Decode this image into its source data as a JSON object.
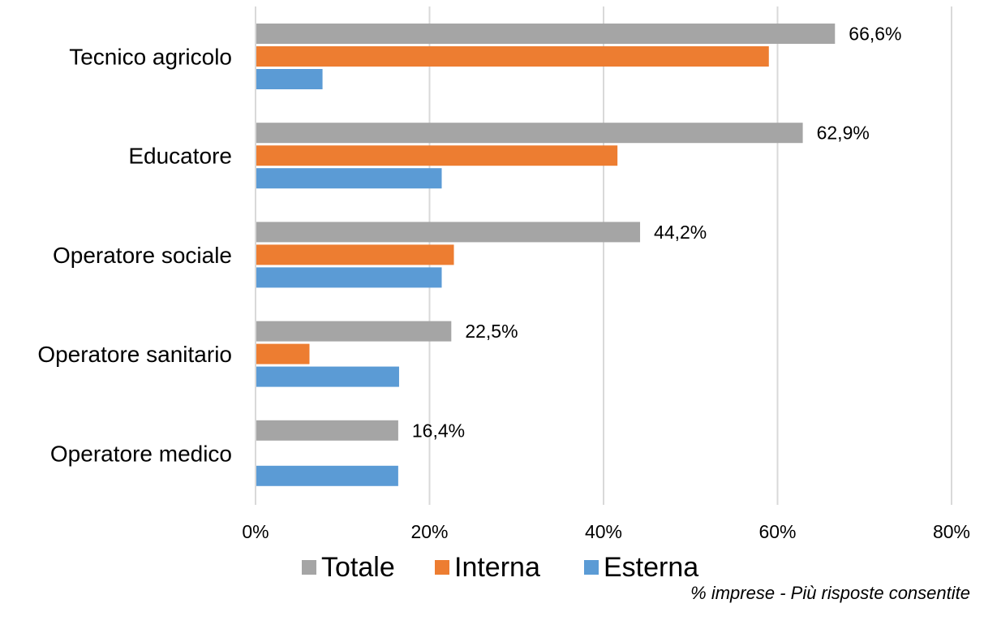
{
  "chart_data": {
    "type": "bar",
    "orientation": "horizontal",
    "categories": [
      "Tecnico agricolo",
      "Educatore",
      "Operatore sociale",
      "Operatore sanitario",
      "Operatore medico"
    ],
    "series": [
      {
        "name": "Totale",
        "color": "#a5a5a5",
        "values": [
          66.6,
          62.9,
          44.2,
          22.5,
          16.4
        ],
        "labels": [
          "66,6%",
          "62,9%",
          "44,2%",
          "22,5%",
          "16,4%"
        ]
      },
      {
        "name": "Interna",
        "color": "#ed7d31",
        "values": [
          59.0,
          41.6,
          22.8,
          6.2,
          0
        ]
      },
      {
        "name": "Esterna",
        "color": "#5b9bd5",
        "values": [
          7.7,
          21.4,
          21.4,
          16.5,
          16.4
        ]
      }
    ],
    "x_ticks": [
      0,
      20,
      40,
      60,
      80
    ],
    "x_tick_labels": [
      "0%",
      "20%",
      "40%",
      "60%",
      "80%"
    ],
    "xlim": [
      0,
      80
    ],
    "grid": true,
    "legend_position": "bottom",
    "note": "% imprese - Più risposte consentite"
  },
  "colors": {
    "grid": "#d9d9d9",
    "text": "#000000"
  }
}
